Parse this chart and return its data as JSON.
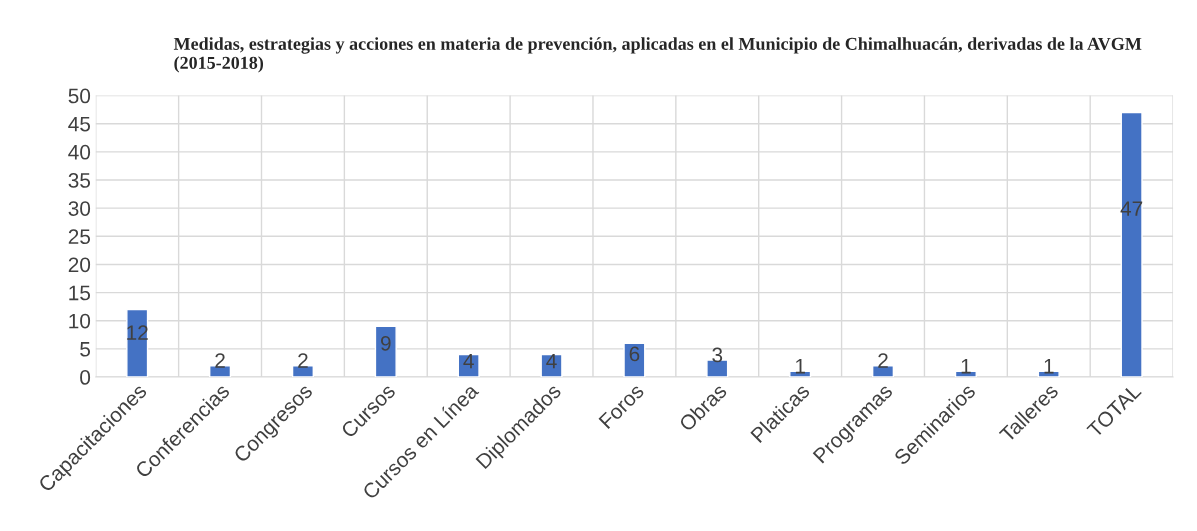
{
  "chart_data": {
    "type": "bar",
    "title": "Medidas, estrategias y acciones en materia de prevención, aplicadas en el Municipio de Chimalhuacán, derivadas de la AVGM (2015-2018)",
    "categories": [
      "Capacitaciones",
      "Conferencias",
      "Congresos",
      "Cursos",
      "Cursos en Línea",
      "Diplomados",
      "Foros",
      "Obras",
      "Platicas",
      "Programas",
      "Seminarios",
      "Talleres",
      "TOTAL"
    ],
    "values": [
      12,
      2,
      2,
      9,
      4,
      4,
      6,
      3,
      1,
      2,
      1,
      1,
      47
    ],
    "color": "#4472c4",
    "ylim": [
      0,
      50
    ],
    "yticks": [
      0,
      5,
      10,
      15,
      20,
      25,
      30,
      35,
      40,
      45,
      50
    ],
    "grid": true,
    "data_labels": true
  }
}
